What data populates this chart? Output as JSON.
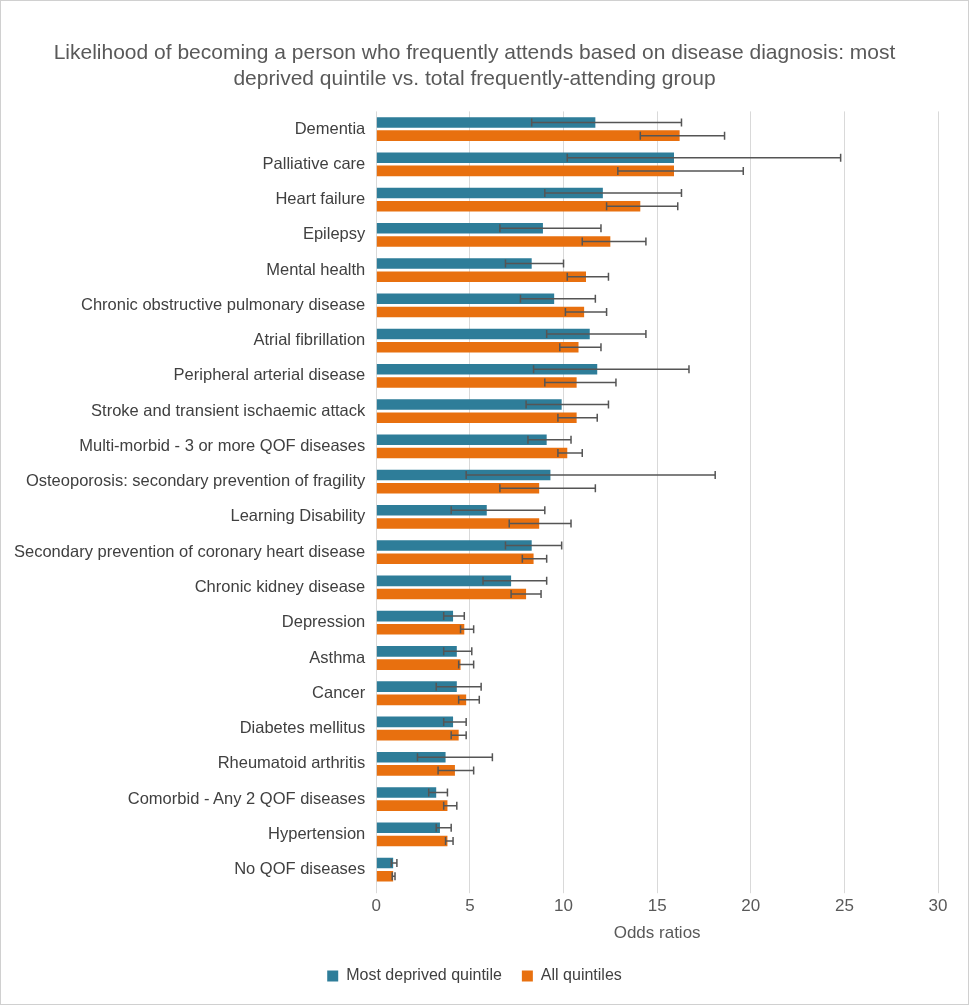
{
  "chart_data": {
    "type": "bar",
    "orientation": "horizontal",
    "title": "Likelihood of becoming a person who frequently attends based on disease diagnosis: most deprived quintile vs. total frequently-attending group",
    "xlabel": "Odds ratios",
    "categories": [
      "Dementia",
      "Palliative care",
      "Heart failure",
      "Epilepsy",
      "Mental health",
      "Chronic obstructive pulmonary disease",
      "Atrial fibrillation",
      "Peripheral arterial disease",
      "Stroke and transient ischaemic attack",
      "Multi-morbid - 3 or more QOF diseases",
      "Osteoporosis: secondary prevention of fragility",
      "Learning Disability",
      "Secondary prevention of coronary heart disease",
      "Chronic kidney disease",
      "Depression",
      "Asthma",
      "Cancer",
      "Diabetes mellitus",
      "Rheumatoid arthritis",
      "Comorbid - Any 2 QOF diseases",
      "Hypertension",
      "No QOF diseases"
    ],
    "series": [
      {
        "name": "Most deprived quintile",
        "color": "#2e7d99",
        "values": [
          11.7,
          15.9,
          12.1,
          8.9,
          8.3,
          9.5,
          11.4,
          11.8,
          9.9,
          9.1,
          9.3,
          5.9,
          8.3,
          7.2,
          4.1,
          4.3,
          4.3,
          4.1,
          3.7,
          3.2,
          3.4,
          0.9
        ],
        "errors": [
          [
            8.3,
            16.3
          ],
          [
            10.2,
            24.8
          ],
          [
            9.0,
            16.3
          ],
          [
            6.6,
            12.0
          ],
          [
            6.9,
            10.0
          ],
          [
            7.7,
            11.7
          ],
          [
            9.1,
            14.4
          ],
          [
            8.4,
            16.7
          ],
          [
            8.0,
            12.4
          ],
          [
            8.1,
            10.4
          ],
          [
            4.8,
            18.1
          ],
          [
            4.0,
            9.0
          ],
          [
            6.9,
            9.9
          ],
          [
            5.7,
            9.1
          ],
          [
            3.6,
            4.7
          ],
          [
            3.6,
            5.1
          ],
          [
            3.2,
            5.6
          ],
          [
            3.6,
            4.8
          ],
          [
            2.2,
            6.2
          ],
          [
            2.8,
            3.8
          ],
          [
            3.2,
            4.0
          ],
          [
            0.8,
            1.1
          ]
        ]
      },
      {
        "name": "All quintiles",
        "color": "#e8700f",
        "values": [
          16.2,
          15.9,
          14.1,
          12.5,
          11.2,
          11.1,
          10.8,
          10.7,
          10.7,
          10.2,
          8.7,
          8.7,
          8.4,
          8.0,
          4.7,
          4.5,
          4.8,
          4.4,
          4.2,
          3.8,
          3.8,
          0.9
        ],
        "errors": [
          [
            14.1,
            18.6
          ],
          [
            12.9,
            19.6
          ],
          [
            12.3,
            16.1
          ],
          [
            11.0,
            14.4
          ],
          [
            10.2,
            12.4
          ],
          [
            10.1,
            12.3
          ],
          [
            9.8,
            12.0
          ],
          [
            9.0,
            12.8
          ],
          [
            9.7,
            11.8
          ],
          [
            9.7,
            11.0
          ],
          [
            6.6,
            11.7
          ],
          [
            7.1,
            10.4
          ],
          [
            7.8,
            9.1
          ],
          [
            7.2,
            8.8
          ],
          [
            4.5,
            5.2
          ],
          [
            4.4,
            5.2
          ],
          [
            4.4,
            5.5
          ],
          [
            4.0,
            4.8
          ],
          [
            3.3,
            5.2
          ],
          [
            3.6,
            4.3
          ],
          [
            3.7,
            4.1
          ],
          [
            0.85,
            1.0
          ]
        ]
      }
    ],
    "xlim": [
      0,
      30
    ],
    "xticks": [
      0,
      5,
      10,
      15,
      20,
      25,
      30
    ],
    "grid": "x",
    "legend": "bottom"
  }
}
